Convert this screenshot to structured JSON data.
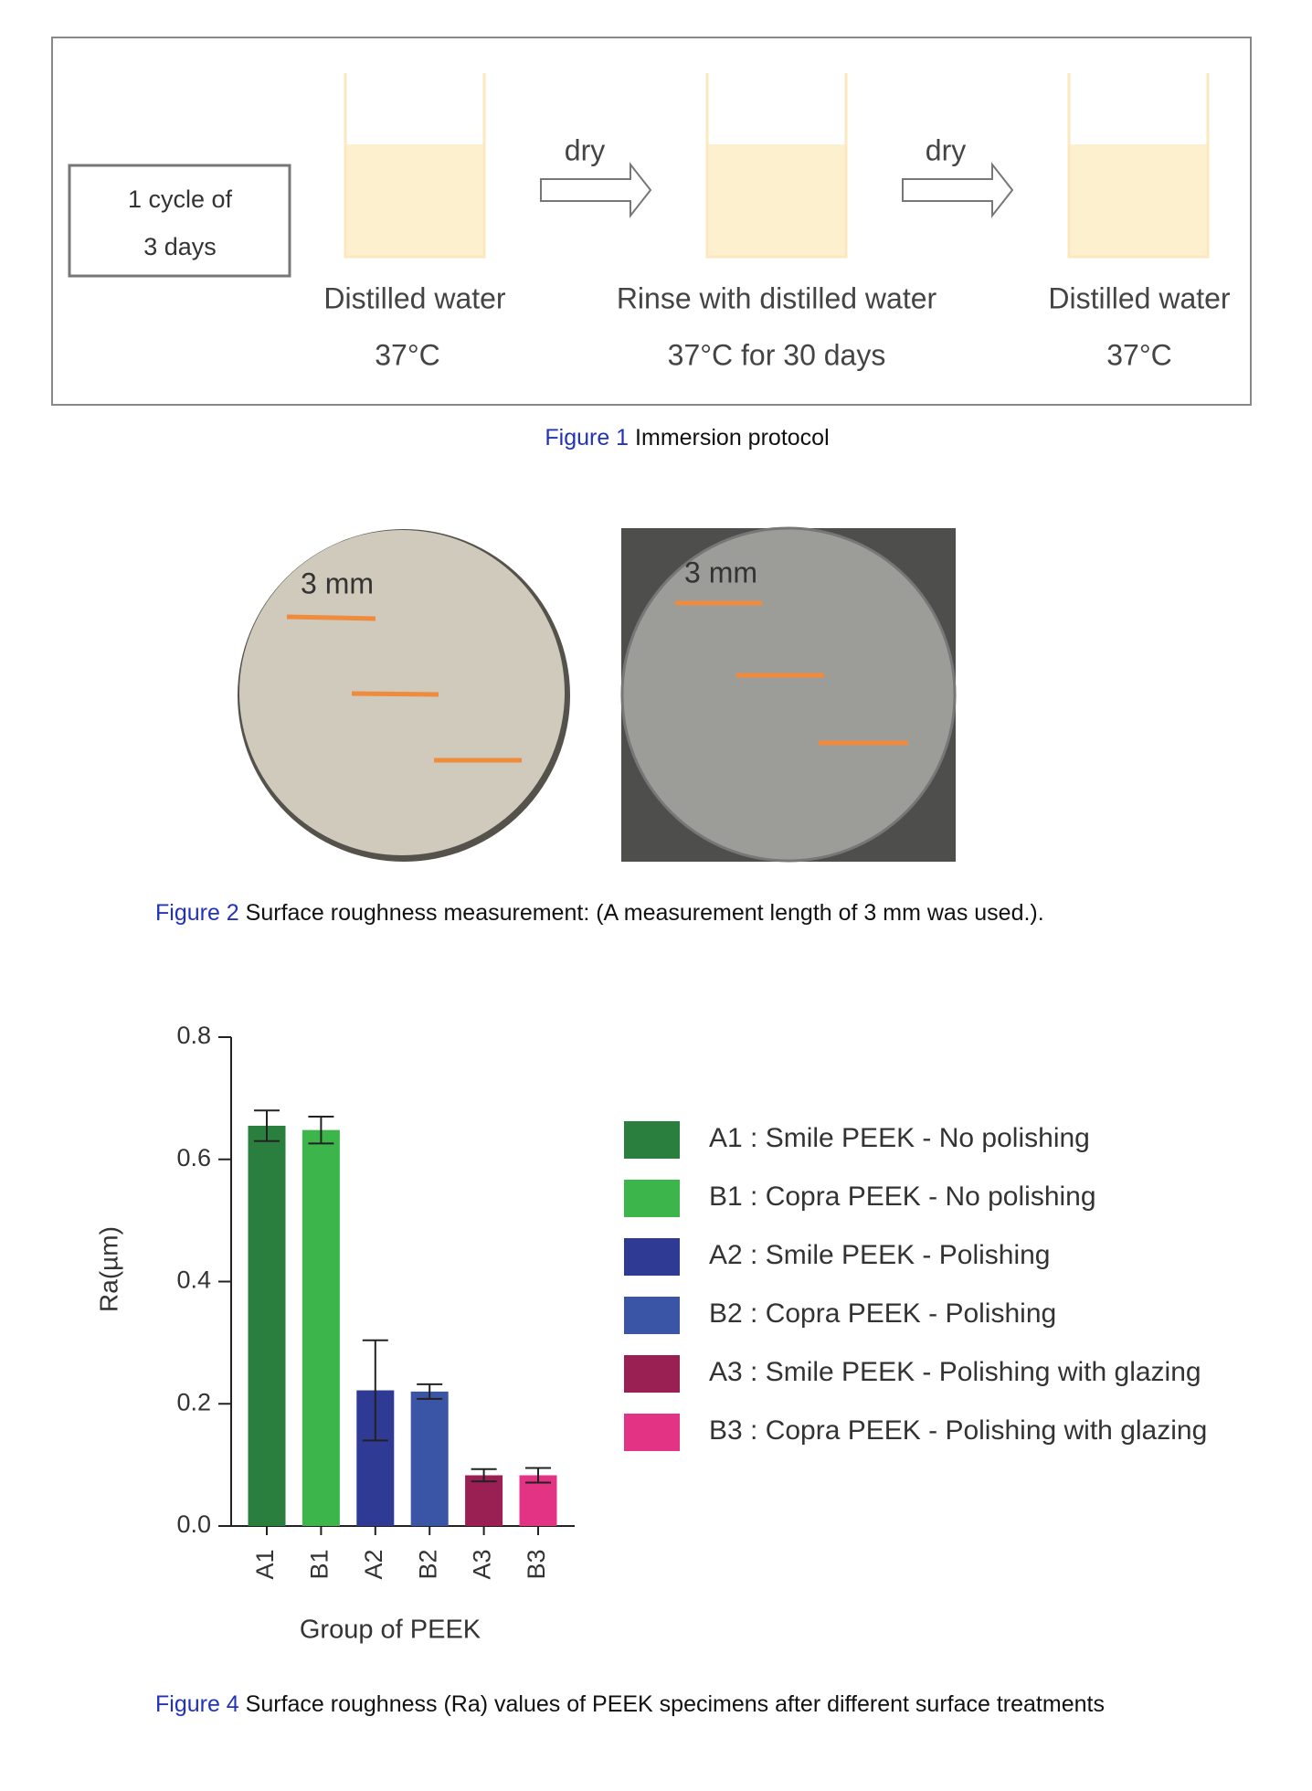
{
  "figure1": {
    "box_text": [
      "1 cycle of",
      "3 days"
    ],
    "arrow_labels": [
      "dry",
      "dry"
    ],
    "steps": [
      {
        "label": "Distilled water",
        "temp": "37°C"
      },
      {
        "label": "Rinse with distilled water",
        "temp": "37°C for 30 days"
      },
      {
        "label": "Distilled water",
        "temp": "37°C"
      }
    ],
    "caption_label": "Figure 1",
    "caption": "Immersion protocol"
  },
  "figure2": {
    "scale_labels": [
      "3 mm",
      "3 mm"
    ],
    "caption_label": "Figure 2",
    "caption": "Surface roughness measurement: (A measurement length of 3 mm was used.)."
  },
  "chart_data": {
    "type": "bar",
    "x_label": "Group of PEEK",
    "y_label": "Ra(µm)",
    "categories": [
      "A1",
      "B1",
      "A2",
      "B2",
      "A3",
      "B3"
    ],
    "values": [
      0.655,
      0.648,
      0.222,
      0.22,
      0.083,
      0.083
    ],
    "errors": [
      0.025,
      0.022,
      0.082,
      0.012,
      0.01,
      0.012
    ],
    "colors": [
      "#2a7f3e",
      "#3cb54a",
      "#2e3a94",
      "#3a55a6",
      "#9a1f52",
      "#e33384"
    ],
    "legend_labels": [
      "A1 : Smile PEEK - No polishing",
      "B1 : Copra PEEK - No polishing",
      "A2 : Smile PEEK - Polishing",
      "B2 : Copra PEEK - Polishing",
      "A3 : Smile PEEK - Polishing with glazing",
      "B3 : Copra PEEK - Polishing with glazing"
    ],
    "ylim": [
      0,
      0.8
    ],
    "yticks": [
      {
        "value": 0,
        "label": "0.0"
      },
      0.2,
      0.4,
      0.6,
      0.8
    ]
  },
  "figure4": {
    "caption_label": "Figure 4",
    "caption": "Surface roughness (Ra) values of PEEK specimens after different surface treatments"
  }
}
